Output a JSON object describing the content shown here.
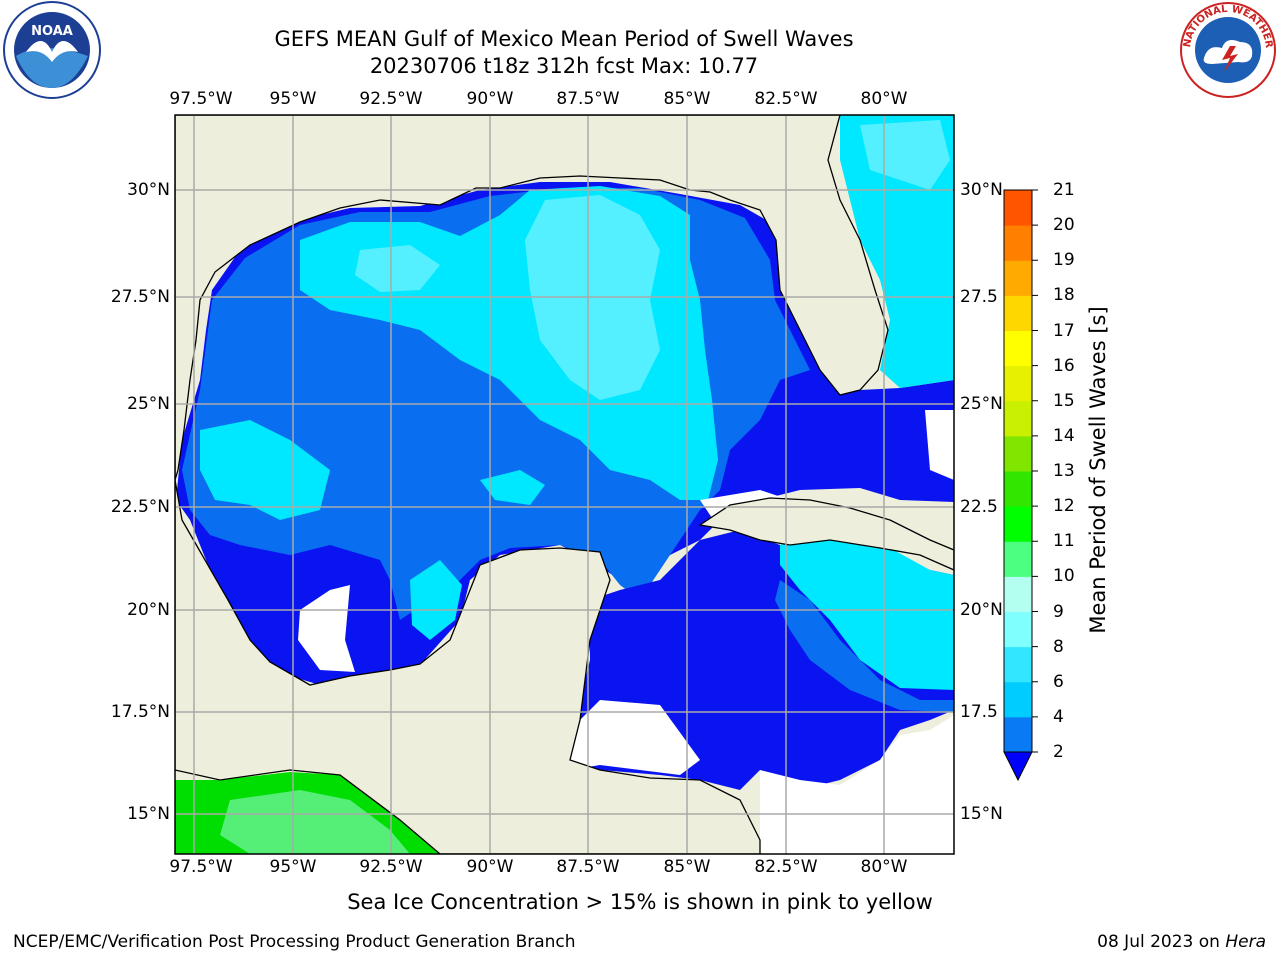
{
  "title_line1": "GEFS MEAN Gulf of Mexico Mean Period of Swell Waves",
  "title_line2": "20230706 t18z 312h fcst   Max: 10.77",
  "lon_labels": [
    "97.5°W",
    "95°W",
    "92.5°W",
    "90°W",
    "87.5°W",
    "85°W",
    "82.5°W",
    "80°W"
  ],
  "lat_labels": [
    "30°N",
    "27.5°N",
    "25°N",
    "22.5°N",
    "20°N",
    "17.5°N",
    "15°N"
  ],
  "lat_labels_right": [
    "30°N",
    "27.5",
    "25°N",
    "22.5",
    "20°N",
    "17.5",
    "15°N"
  ],
  "colorbar": {
    "label": "Mean Period of Swell Waves [s]",
    "ticks": [
      "2",
      "4",
      "6",
      "8",
      "9",
      "10",
      "11",
      "12",
      "13",
      "14",
      "15",
      "16",
      "17",
      "18",
      "19",
      "20",
      "21"
    ],
    "colors": [
      "#0a7af4",
      "#00ccff",
      "#33e6ff",
      "#80ffff",
      "#b3fff0",
      "#4dff80",
      "#00ff00",
      "#33e600",
      "#80e600",
      "#c8f000",
      "#e6f000",
      "#ffff00",
      "#ffd700",
      "#ffaa00",
      "#ff8000",
      "#ff5500",
      "#ff2a00",
      "#ff0000"
    ],
    "extend_color": "#0000ff"
  },
  "colors": {
    "land": "#eeeedd",
    "deep_blue": "#0a14f0",
    "mid_blue": "#0a6ef0",
    "cyan": "#00e8ff",
    "light_cyan": "#55f0ff",
    "green": "#00dd00",
    "light_green": "#55ee77",
    "grid": "#aaaaaa"
  },
  "ice_note": "Sea Ice Concentration > 15% is shown in pink to yellow",
  "credit": "NCEP/EMC/Verification Post Processing Product Generation Branch",
  "date_stamp_prefix": "08 Jul 2023 on ",
  "date_stamp_host": "Hera",
  "logos": {
    "left": "NOAA",
    "right": "NATIONAL WEATHER SERVICE"
  }
}
